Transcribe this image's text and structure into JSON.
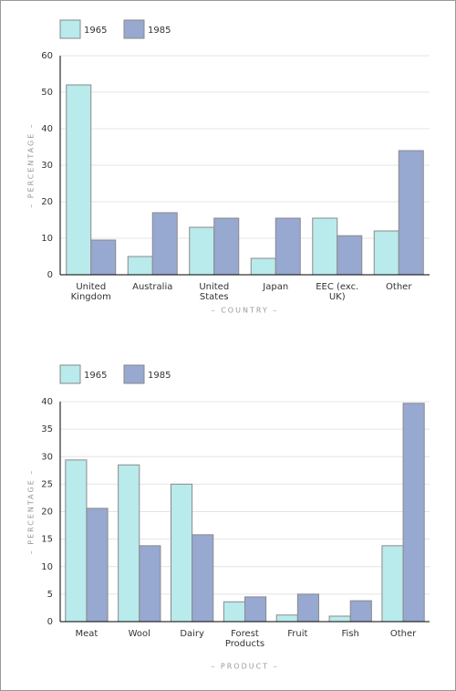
{
  "chart_data": [
    {
      "type": "bar",
      "x_label": "– COUNTRY –",
      "y_label": "– PERCENTAGE –",
      "categories": [
        "United Kingdom",
        "Australia",
        "United States",
        "Japan",
        "EEC (exc. UK)",
        "Other"
      ],
      "series": [
        {
          "name": "1965",
          "color": "#b9eaec",
          "values": [
            52,
            5,
            13,
            4.5,
            15.5,
            12
          ]
        },
        {
          "name": "1985",
          "color": "#97a8d1",
          "values": [
            9.5,
            17,
            15.5,
            15.5,
            10.7,
            34
          ]
        }
      ],
      "ylim": [
        0,
        60
      ],
      "yticks": [
        0,
        10,
        20,
        30,
        40,
        50,
        60
      ],
      "grid": true
    },
    {
      "type": "bar",
      "x_label": "– PRODUCT –",
      "y_label": "– PERCENTAGE –",
      "categories": [
        "Meat",
        "Wool",
        "Dairy",
        "Forest Products",
        "Fruit",
        "Fish",
        "Other"
      ],
      "series": [
        {
          "name": "1965",
          "color": "#b9eaec",
          "values": [
            29.4,
            28.5,
            25,
            3.6,
            1.2,
            1,
            13.8
          ]
        },
        {
          "name": "1985",
          "color": "#97a8d1",
          "values": [
            20.6,
            13.8,
            15.8,
            4.5,
            5,
            3.8,
            39.7
          ]
        }
      ],
      "ylim": [
        0,
        40
      ],
      "yticks": [
        0,
        5,
        10,
        15,
        20,
        25,
        30,
        35,
        40
      ],
      "grid": true
    }
  ]
}
